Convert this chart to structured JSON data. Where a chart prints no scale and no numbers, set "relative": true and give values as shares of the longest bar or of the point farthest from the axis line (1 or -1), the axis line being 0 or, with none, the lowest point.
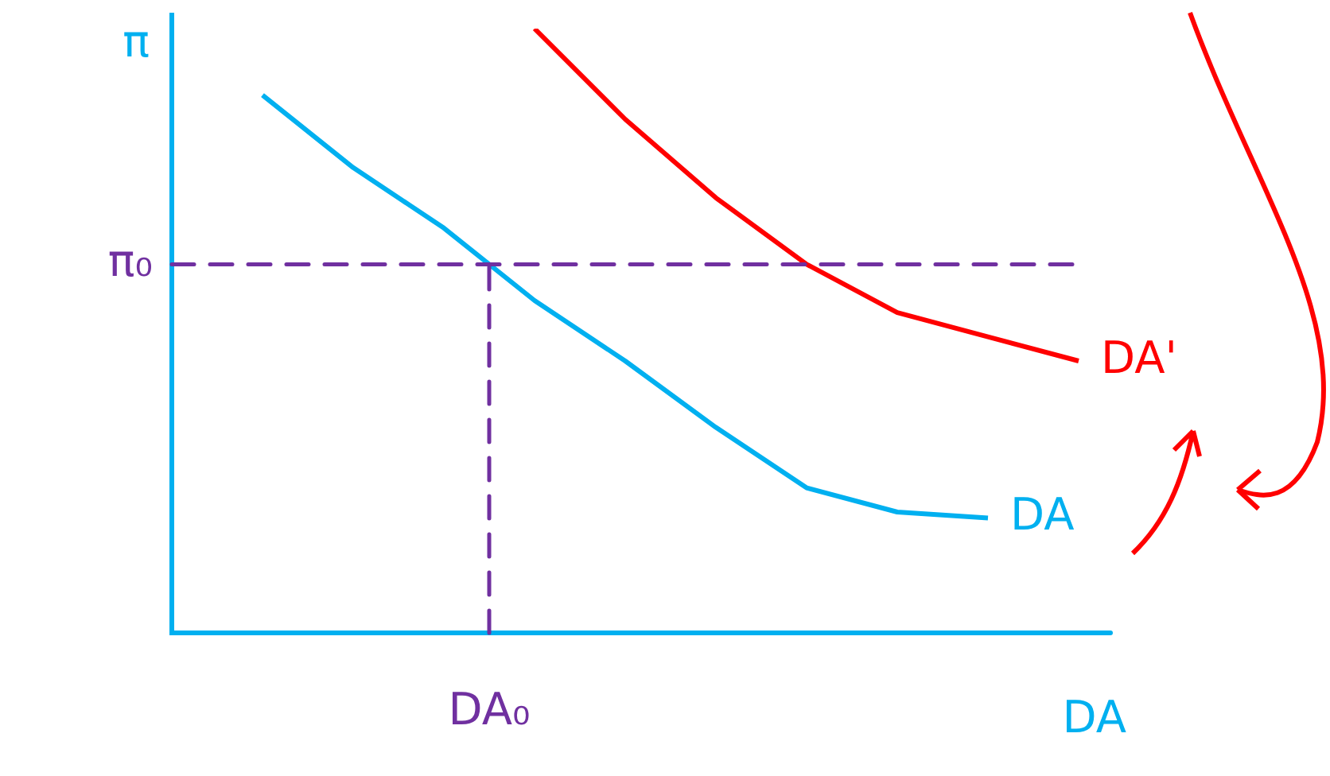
{
  "chart_data": {
    "type": "line",
    "relative": true,
    "xlabel": "DA",
    "ylabel": "π",
    "legend": false,
    "marker": "none",
    "categories": [
      null,
      null,
      null,
      null,
      null,
      null,
      null,
      null,
      null,
      null,
      null
    ],
    "annotations": [
      "DA₀"
    ],
    "series": [
      {
        "name": "DA",
        "color": "#00b0f0",
        "values": [
          null,
          0.89,
          0.77,
          0.67,
          0.55,
          0.45,
          0.34,
          0.24,
          0.2,
          0.19,
          null
        ]
      },
      {
        "name": "DA'",
        "color": "#ff0000",
        "values": [
          null,
          null,
          null,
          null,
          1.0,
          0.85,
          0.72,
          0.61,
          0.53,
          0.49,
          0.45
        ]
      }
    ],
    "ref_lines": [
      {
        "axis": "y",
        "value": 0.61,
        "label": "π₀",
        "color": "#7030a0",
        "line_style": "dashed"
      }
    ]
  }
}
